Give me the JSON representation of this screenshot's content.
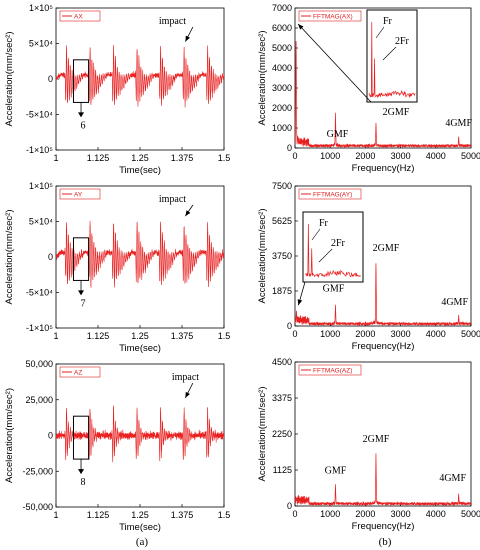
{
  "chart_data": [
    {
      "type": "line",
      "legend": "AX",
      "xlabel": "Time(sec)",
      "ylabel": "Acceleration(mm/sec²)",
      "xlim": [
        1,
        1.5
      ],
      "ylim": [
        -100000,
        100000
      ],
      "xticks": [
        "1",
        "1.125",
        "1.25",
        "1.375",
        "1.5"
      ],
      "yticks": [
        "1×10⁵",
        "5×10⁴",
        "0",
        "-5×10⁴",
        "-1×10⁵"
      ],
      "annotations": [
        {
          "text": "impact"
        },
        {
          "text": "6"
        }
      ],
      "impact_times": [
        1.03,
        1.1,
        1.17,
        1.24,
        1.31,
        1.38,
        1.45
      ],
      "peak_amplitude": 50000,
      "color": "#e82020"
    },
    {
      "type": "line",
      "legend": "FFTMAG(AX)",
      "xlabel": "Frequency(Hz)",
      "ylabel": "Acceleration(mm/sec²)",
      "xlim": [
        0,
        5000
      ],
      "ylim": [
        0,
        7000
      ],
      "xticks": [
        "0",
        "1000",
        "2000",
        "3000",
        "4000",
        "5000"
      ],
      "yticks": [
        "0",
        "1000",
        "2000",
        "3000",
        "4000",
        "5000",
        "6000",
        "7000"
      ],
      "peaks": [
        {
          "x": 30,
          "y": 6000
        },
        {
          "x": 1150,
          "y": 1800
        },
        {
          "x": 2300,
          "y": 1350
        },
        {
          "x": 4650,
          "y": 600
        }
      ],
      "annotations": [
        {
          "text": "GMF"
        },
        {
          "text": "2GMF"
        },
        {
          "text": "4GMF"
        },
        {
          "text": "Fr"
        },
        {
          "text": "2Fr"
        }
      ],
      "color": "#e82020"
    },
    {
      "type": "line",
      "legend": "AY",
      "xlabel": "Time(sec)",
      "ylabel": "Acceleration(mm/sec²)",
      "xlim": [
        1,
        1.5
      ],
      "ylim": [
        -100000,
        100000
      ],
      "xticks": [
        "1",
        "1.125",
        "1.25",
        "1.375",
        "1.5"
      ],
      "yticks": [
        "1×10⁵",
        "5×10⁴",
        "0",
        "-5×10⁴",
        "-1×10⁵"
      ],
      "annotations": [
        {
          "text": "impact"
        },
        {
          "text": "7"
        }
      ],
      "impact_times": [
        1.03,
        1.1,
        1.17,
        1.24,
        1.31,
        1.38,
        1.45
      ],
      "peak_amplitude": 55000,
      "color": "#e82020"
    },
    {
      "type": "line",
      "legend": "FFTMAG(AY)",
      "xlabel": "Frequency(Hz)",
      "ylabel": "Acceleration(mm/sec²)",
      "xlim": [
        0,
        5000
      ],
      "ylim": [
        0,
        7500
      ],
      "xticks": [
        "0",
        "1000",
        "2000",
        "3000",
        "4000",
        "5000"
      ],
      "yticks": [
        "0",
        "1875",
        "3750",
        "5625",
        "7500"
      ],
      "peaks": [
        {
          "x": 40,
          "y": 900
        },
        {
          "x": 1150,
          "y": 1200
        },
        {
          "x": 2300,
          "y": 3700
        },
        {
          "x": 4650,
          "y": 600
        }
      ],
      "annotations": [
        {
          "text": "GMF"
        },
        {
          "text": "2GMF"
        },
        {
          "text": "4GMF"
        },
        {
          "text": "Fr"
        },
        {
          "text": "2Fr"
        }
      ],
      "color": "#e82020"
    },
    {
      "type": "line",
      "legend": "AZ",
      "xlabel": "Time(sec)",
      "ylabel": "Acceleration(mm/sec²)",
      "xlim": [
        1,
        1.5
      ],
      "ylim": [
        -50000,
        50000
      ],
      "xticks": [
        "1",
        "1.125",
        "1.25",
        "1.375",
        "1.5"
      ],
      "yticks": [
        "50,000",
        "25,000",
        "0",
        "-25,000",
        "-50,000"
      ],
      "annotations": [
        {
          "text": "impact"
        },
        {
          "text": "8"
        }
      ],
      "impact_times": [
        1.03,
        1.1,
        1.17,
        1.24,
        1.31,
        1.38,
        1.45
      ],
      "peak_amplitude": 25000,
      "color": "#e82020"
    },
    {
      "type": "line",
      "legend": "FFTMAG(AZ)",
      "xlabel": "Frequency(Hz)",
      "ylabel": "Acceleration(mm/sec²)",
      "xlim": [
        0,
        5000
      ],
      "ylim": [
        0,
        4500
      ],
      "xticks": [
        "0",
        "1000",
        "2000",
        "3000",
        "4000",
        "5000"
      ],
      "yticks": [
        "0",
        "1125",
        "2250",
        "3375",
        "4500"
      ],
      "peaks": [
        {
          "x": 1150,
          "y": 700
        },
        {
          "x": 2300,
          "y": 1750
        },
        {
          "x": 4650,
          "y": 400
        }
      ],
      "annotations": [
        {
          "text": "GMF"
        },
        {
          "text": "2GMF"
        },
        {
          "text": "4GMF"
        }
      ],
      "color": "#e82020"
    }
  ],
  "captions": {
    "a": "(a)",
    "b": "(b)"
  }
}
